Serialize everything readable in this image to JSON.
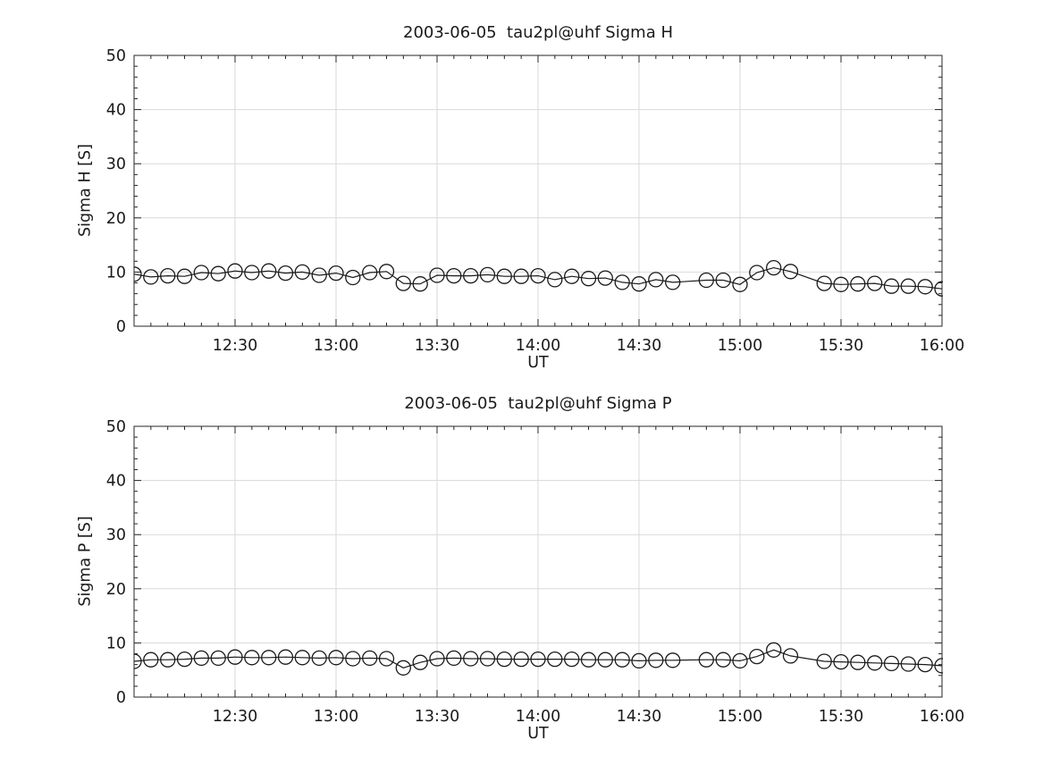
{
  "style": {
    "background": "#ffffff",
    "grid_color": "#d9d9d9",
    "axis_color": "#262626",
    "text_color": "#1a1a1a",
    "data_color": "#1a1a1a"
  },
  "chart_data": [
    {
      "type": "line",
      "title": "2003-06-05  tau2pl@uhf Sigma H",
      "xlabel": "UT",
      "ylabel": "Sigma H [S]",
      "ylim": [
        0,
        50
      ],
      "yticks": [
        0,
        10,
        20,
        30,
        40,
        50
      ],
      "xlim": [
        "12:00",
        "16:00"
      ],
      "xticks": [
        "12:30",
        "13:00",
        "13:30",
        "14:00",
        "14:30",
        "15:00",
        "15:30",
        "16:00"
      ],
      "x_minor_interval_min": 5,
      "y_minor_interval": 2,
      "grid": true,
      "legend": "none",
      "marker": "open-circle",
      "x": [
        "12:00",
        "12:05",
        "12:10",
        "12:15",
        "12:20",
        "12:25",
        "12:30",
        "12:35",
        "12:40",
        "12:45",
        "12:50",
        "12:55",
        "13:00",
        "13:05",
        "13:10",
        "13:15",
        "13:20",
        "13:25",
        "13:30",
        "13:35",
        "13:40",
        "13:45",
        "13:50",
        "13:55",
        "14:00",
        "14:05",
        "14:10",
        "14:15",
        "14:20",
        "14:25",
        "14:30",
        "14:35",
        "14:40",
        "14:45",
        "14:50",
        "14:55",
        "15:00",
        "15:05",
        "15:10",
        "15:15",
        "15:20",
        "15:25",
        "15:30",
        "15:35",
        "15:40",
        "15:45",
        "15:50",
        "15:55",
        "16:00"
      ],
      "values": [
        9.6,
        9.1,
        9.3,
        9.2,
        9.9,
        9.7,
        10.2,
        9.9,
        10.2,
        9.8,
        10.0,
        9.4,
        9.8,
        9.0,
        9.9,
        10.1,
        7.9,
        7.8,
        9.4,
        9.3,
        9.3,
        9.5,
        9.2,
        9.2,
        9.3,
        8.6,
        9.2,
        8.8,
        8.9,
        8.1,
        7.8,
        8.6,
        8.1,
        null,
        8.5,
        8.5,
        7.7,
        9.9,
        10.8,
        10.1,
        null,
        7.9,
        7.7,
        7.8,
        7.9,
        7.4,
        7.4,
        7.3,
        6.9
      ]
    },
    {
      "type": "line",
      "title": "2003-06-05  tau2pl@uhf Sigma P",
      "xlabel": "UT",
      "ylabel": "Sigma P [S]",
      "ylim": [
        0,
        50
      ],
      "yticks": [
        0,
        10,
        20,
        30,
        40,
        50
      ],
      "xlim": [
        "12:00",
        "16:00"
      ],
      "xticks": [
        "12:30",
        "13:00",
        "13:30",
        "14:00",
        "14:30",
        "15:00",
        "15:30",
        "16:00"
      ],
      "x_minor_interval_min": 5,
      "y_minor_interval": 2,
      "grid": true,
      "legend": "none",
      "marker": "open-circle",
      "x": [
        "12:00",
        "12:05",
        "12:10",
        "12:15",
        "12:20",
        "12:25",
        "12:30",
        "12:35",
        "12:40",
        "12:45",
        "12:50",
        "12:55",
        "13:00",
        "13:05",
        "13:10",
        "13:15",
        "13:20",
        "13:25",
        "13:30",
        "13:35",
        "13:40",
        "13:45",
        "13:50",
        "13:55",
        "14:00",
        "14:05",
        "14:10",
        "14:15",
        "14:20",
        "14:25",
        "14:30",
        "14:35",
        "14:40",
        "14:45",
        "14:50",
        "14:55",
        "15:00",
        "15:05",
        "15:10",
        "15:15",
        "15:20",
        "15:25",
        "15:30",
        "15:35",
        "15:40",
        "15:45",
        "15:50",
        "15:55",
        "16:00"
      ],
      "values": [
        6.6,
        6.9,
        6.9,
        7.0,
        7.2,
        7.2,
        7.4,
        7.3,
        7.3,
        7.4,
        7.3,
        7.2,
        7.3,
        7.1,
        7.2,
        7.1,
        5.4,
        6.4,
        7.1,
        7.2,
        7.1,
        7.1,
        7.0,
        7.0,
        7.0,
        7.0,
        7.0,
        6.9,
        6.9,
        6.9,
        6.7,
        6.8,
        6.8,
        null,
        6.9,
        6.9,
        6.7,
        7.5,
        8.7,
        7.6,
        null,
        6.6,
        6.5,
        6.4,
        6.3,
        6.2,
        6.1,
        6.0,
        5.8
      ]
    }
  ]
}
